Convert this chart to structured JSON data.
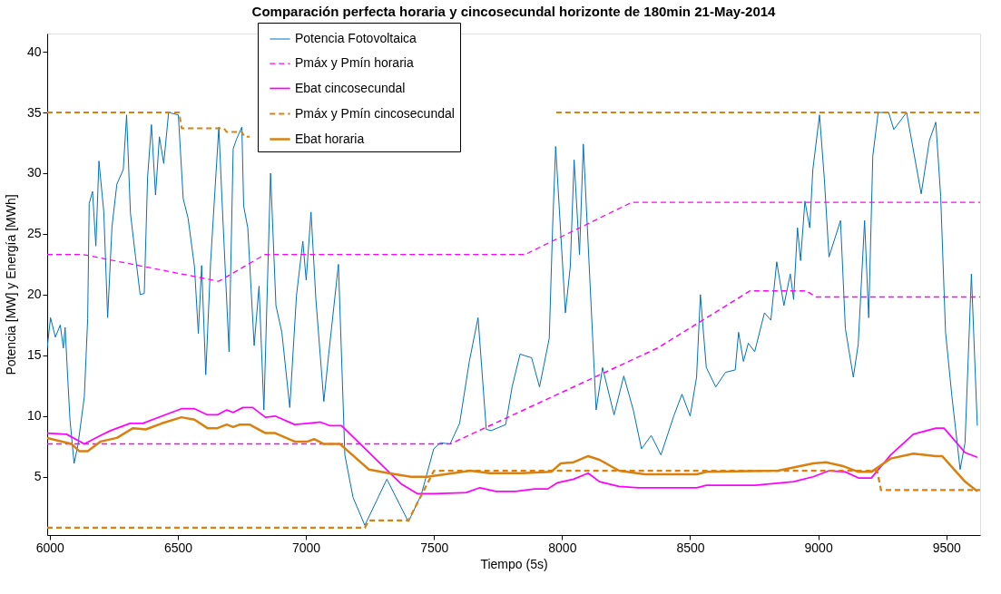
{
  "chart_data": {
    "type": "line",
    "title": "Comparación perfecta horaria y cincosecundal horizonte de 180min  21-May-2014",
    "xlabel": "Tiempo (5s)",
    "ylabel": "Potencia [MW] y Energía [MWh]",
    "xlim": [
      5990,
      9632
    ],
    "ylim": [
      0.2,
      41.5
    ],
    "xticks": [
      6000,
      6500,
      7000,
      7500,
      8000,
      8500,
      9000,
      9500
    ],
    "yticks": [
      5,
      10,
      15,
      20,
      25,
      30,
      35,
      40
    ],
    "grid": false,
    "legend": "top",
    "marker": "none",
    "series": [
      {
        "name": "Potencia Fotovoltaica",
        "color": "#0072bd",
        "line_style": "solid",
        "x": [
          5990,
          6003,
          6022,
          6041,
          6053,
          6060,
          6070,
          6079,
          6095,
          6110,
          6135,
          6148,
          6154,
          6167,
          6180,
          6192,
          6211,
          6226,
          6243,
          6262,
          6287,
          6300,
          6315,
          6335,
          6353,
          6369,
          6382,
          6397,
          6413,
          6428,
          6445,
          6464,
          6502,
          6521,
          6540,
          6565,
          6580,
          6593,
          6609,
          6628,
          6660,
          6672,
          6700,
          6716,
          6729,
          6750,
          6757,
          6773,
          6798,
          6817,
          6836,
          6862,
          6883,
          6906,
          6937,
          6963,
          6988,
          7001,
          7020,
          7039,
          7070,
          7089,
          7127,
          7152,
          7184,
          7230,
          7316,
          7400,
          7450,
          7499,
          7525,
          7563,
          7600,
          7638,
          7672,
          7704,
          7723,
          7780,
          7805,
          7836,
          7881,
          7912,
          7950,
          7963,
          7975,
          8013,
          8032,
          8047,
          8068,
          8083,
          8133,
          8158,
          8203,
          8241,
          8278,
          8310,
          8348,
          8386,
          8436,
          8468,
          8500,
          8525,
          8540,
          8563,
          8600,
          8638,
          8676,
          8689,
          8708,
          8727,
          8752,
          8790,
          8815,
          8838,
          8866,
          8891,
          8904,
          8919,
          8931,
          8948,
          8967,
          8979,
          9005,
          9024,
          9042,
          9087,
          9106,
          9137,
          9156,
          9181,
          9197,
          9213,
          9234,
          9275,
          9295,
          9345,
          9402,
          9434,
          9459,
          9478,
          9497,
          9522,
          9554,
          9573,
          9598,
          9621
        ],
        "values": [
          15.6,
          18.1,
          16.5,
          17.5,
          15.6,
          17.3,
          13.2,
          9.7,
          6.1,
          7.6,
          11.6,
          18.0,
          27.5,
          28.5,
          24.0,
          31.0,
          26.8,
          18.1,
          25.6,
          29.1,
          30.3,
          34.8,
          26.7,
          23.1,
          20.0,
          20.1,
          29.7,
          34.0,
          28.2,
          33.0,
          30.8,
          35.0,
          34.8,
          27.9,
          26.3,
          22.3,
          16.8,
          22.4,
          13.4,
          22.7,
          33.8,
          28.0,
          15.3,
          32.0,
          32.8,
          33.8,
          27.3,
          25.5,
          15.8,
          20.7,
          10.5,
          30.0,
          19.1,
          16.9,
          10.7,
          19.9,
          24.4,
          21.2,
          26.8,
          19.6,
          11.2,
          15.1,
          22.5,
          6.8,
          3.3,
          1.0,
          4.8,
          1.3,
          3.5,
          7.3,
          7.8,
          7.7,
          9.4,
          14.5,
          18.1,
          8.9,
          8.8,
          9.3,
          12.4,
          15.1,
          14.8,
          12.4,
          16.4,
          25.5,
          32.2,
          18.5,
          22.3,
          31.1,
          23.3,
          32.4,
          10.5,
          14.0,
          10.1,
          13.3,
          10.5,
          7.3,
          8.4,
          6.8,
          10.0,
          11.8,
          10.0,
          13.2,
          20.0,
          14.0,
          12.4,
          13.6,
          13.8,
          16.9,
          14.5,
          16.0,
          15.3,
          18.5,
          17.9,
          22.7,
          19.1,
          21.7,
          19.6,
          25.5,
          22.8,
          27.7,
          25.5,
          30.3,
          34.8,
          29.5,
          23.1,
          26.1,
          17.2,
          13.2,
          15.9,
          26.1,
          18.1,
          31.4,
          35.0,
          35.0,
          33.6,
          35.0,
          28.3,
          32.7,
          34.2,
          28.1,
          16.9,
          11.6,
          5.6,
          7.8,
          21.7,
          9.2
        ]
      },
      {
        "name": "Pmáx y Pmín horaria",
        "color": "#ff00ff",
        "line_style": "dashed",
        "x": [
          5990,
          6130,
          6660,
          6840,
          7855,
          8272,
          9632
        ],
        "values": [
          23.3,
          23.3,
          21.1,
          23.3,
          23.3,
          27.6,
          27.6
        ]
      },
      {
        "color": "#ff00ff",
        "line_style": "dashed",
        "x": [
          5990,
          7563,
          8373,
          8733,
          8954,
          8992,
          9632
        ],
        "values": [
          7.7,
          7.7,
          15.6,
          20.3,
          20.3,
          19.8,
          19.8
        ]
      },
      {
        "name": "Ebat cincosecundal",
        "color": "#ff00ff",
        "line_style": "solid",
        "x": [
          5990,
          6066,
          6135,
          6198,
          6237,
          6313,
          6363,
          6438,
          6514,
          6565,
          6616,
          6654,
          6691,
          6716,
          6754,
          6792,
          6842,
          6880,
          6956,
          7006,
          7057,
          7095,
          7139,
          7246,
          7373,
          7436,
          7499,
          7626,
          7679,
          7742,
          7818,
          7893,
          7944,
          7981,
          8045,
          8102,
          8146,
          8222,
          8298,
          8526,
          8563,
          8753,
          8904,
          8980,
          9043,
          9106,
          9157,
          9207,
          9283,
          9371,
          9459,
          9491,
          9573,
          9621
        ],
        "values": [
          8.6,
          8.5,
          7.7,
          8.4,
          8.8,
          9.4,
          9.4,
          10.0,
          10.6,
          10.6,
          10.1,
          10.1,
          10.5,
          10.3,
          10.7,
          10.7,
          9.9,
          10.0,
          9.3,
          9.4,
          9.5,
          9.2,
          9.2,
          7.0,
          4.4,
          3.6,
          3.6,
          3.7,
          4.1,
          3.8,
          3.8,
          4.0,
          4.0,
          4.5,
          4.8,
          5.3,
          4.6,
          4.2,
          4.1,
          4.1,
          4.3,
          4.3,
          4.6,
          5.0,
          5.5,
          5.4,
          4.9,
          4.9,
          6.8,
          8.5,
          9.0,
          9.0,
          7.0,
          6.6
        ]
      },
      {
        "name": "Pmáx y Pmín cincosecundal",
        "color": "#d9800e",
        "line_style": "dashed",
        "x": [
          5990,
          6505,
          6515,
          6680,
          6690,
          6750,
          6760,
          6780,
          6790,
          7977,
          9632
        ],
        "values": [
          35,
          35,
          33.7,
          33.7,
          33.4,
          33.4,
          33.0,
          33.0,
          null,
          35,
          35
        ]
      },
      {
        "color": "#d9800e",
        "line_style": "dashed",
        "x": [
          5990,
          7230,
          7245,
          7400,
          7500,
          9230,
          9245,
          9632
        ],
        "values": [
          0.8,
          0.8,
          1.4,
          1.4,
          5.5,
          5.5,
          3.9,
          3.9
        ]
      },
      {
        "name": "Ebat horaria",
        "color": "#d9800e",
        "line_style": "solid",
        "x": [
          5990,
          6085,
          6116,
          6148,
          6198,
          6262,
          6325,
          6375,
          6438,
          6514,
          6565,
          6616,
          6654,
          6691,
          6716,
          6742,
          6780,
          6842,
          6880,
          6956,
          7006,
          7032,
          7070,
          7133,
          7246,
          7322,
          7410,
          7474,
          7641,
          7717,
          7843,
          7957,
          7995,
          8045,
          8102,
          8146,
          8222,
          8323,
          8526,
          8563,
          8843,
          8980,
          9030,
          9093,
          9157,
          9207,
          9283,
          9371,
          9459,
          9484,
          9573,
          9621
        ],
        "values": [
          8.2,
          7.7,
          7.1,
          7.1,
          7.9,
          8.2,
          9.0,
          8.9,
          9.4,
          9.9,
          9.7,
          9.0,
          9.0,
          9.3,
          9.1,
          9.3,
          9.3,
          8.6,
          8.6,
          7.9,
          7.9,
          8.1,
          7.7,
          7.7,
          5.6,
          5.3,
          5.0,
          5.0,
          5.5,
          5.3,
          5.3,
          5.4,
          6.1,
          6.2,
          6.7,
          6.4,
          5.5,
          5.2,
          5.2,
          5.4,
          5.5,
          6.1,
          6.2,
          5.9,
          5.4,
          5.4,
          6.5,
          6.9,
          6.7,
          6.7,
          4.6,
          3.8
        ]
      }
    ]
  }
}
